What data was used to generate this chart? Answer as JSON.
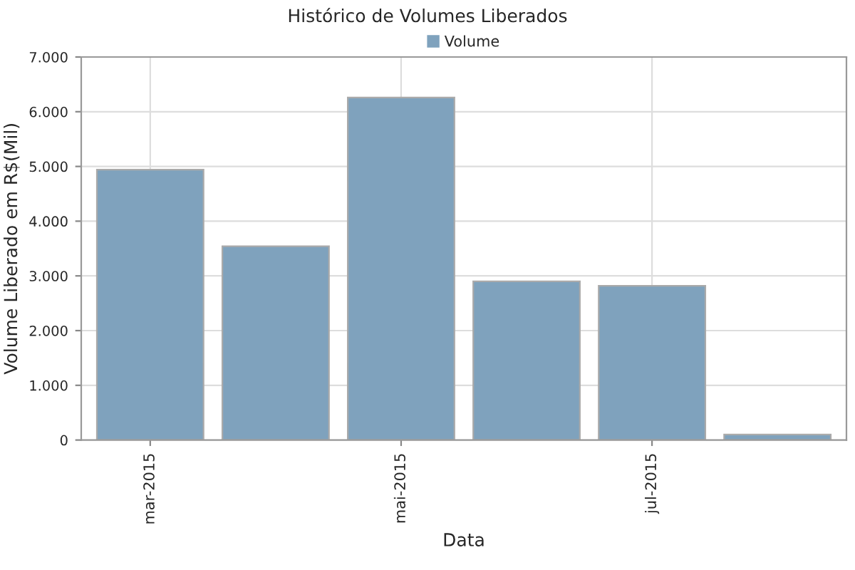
{
  "chart_data": {
    "type": "bar",
    "title": "Histórico de Volumes Liberados",
    "xlabel": "Data",
    "ylabel": "Volume Liberado em R$(Mil)",
    "categories": [
      "mar-2015",
      null,
      "mai-2015",
      null,
      "jul-2015",
      null
    ],
    "series": [
      {
        "name": "Volume",
        "color": "#7fa2bd",
        "values": [
          4940,
          3540,
          6260,
          2900,
          2820,
          100
        ]
      }
    ],
    "ylim": [
      0,
      7000
    ],
    "yticks": [
      0,
      {
        "value": 1000,
        "label": "1.000"
      },
      {
        "value": 2000,
        "label": "2.000"
      },
      {
        "value": 3000,
        "label": "3.000"
      },
      {
        "value": 4000,
        "label": "4.000"
      },
      {
        "value": 5000,
        "label": "5.000"
      },
      {
        "value": 6000,
        "label": "6.000"
      },
      {
        "value": 7000,
        "label": "7.000"
      }
    ],
    "grid": true,
    "legend": "top"
  }
}
